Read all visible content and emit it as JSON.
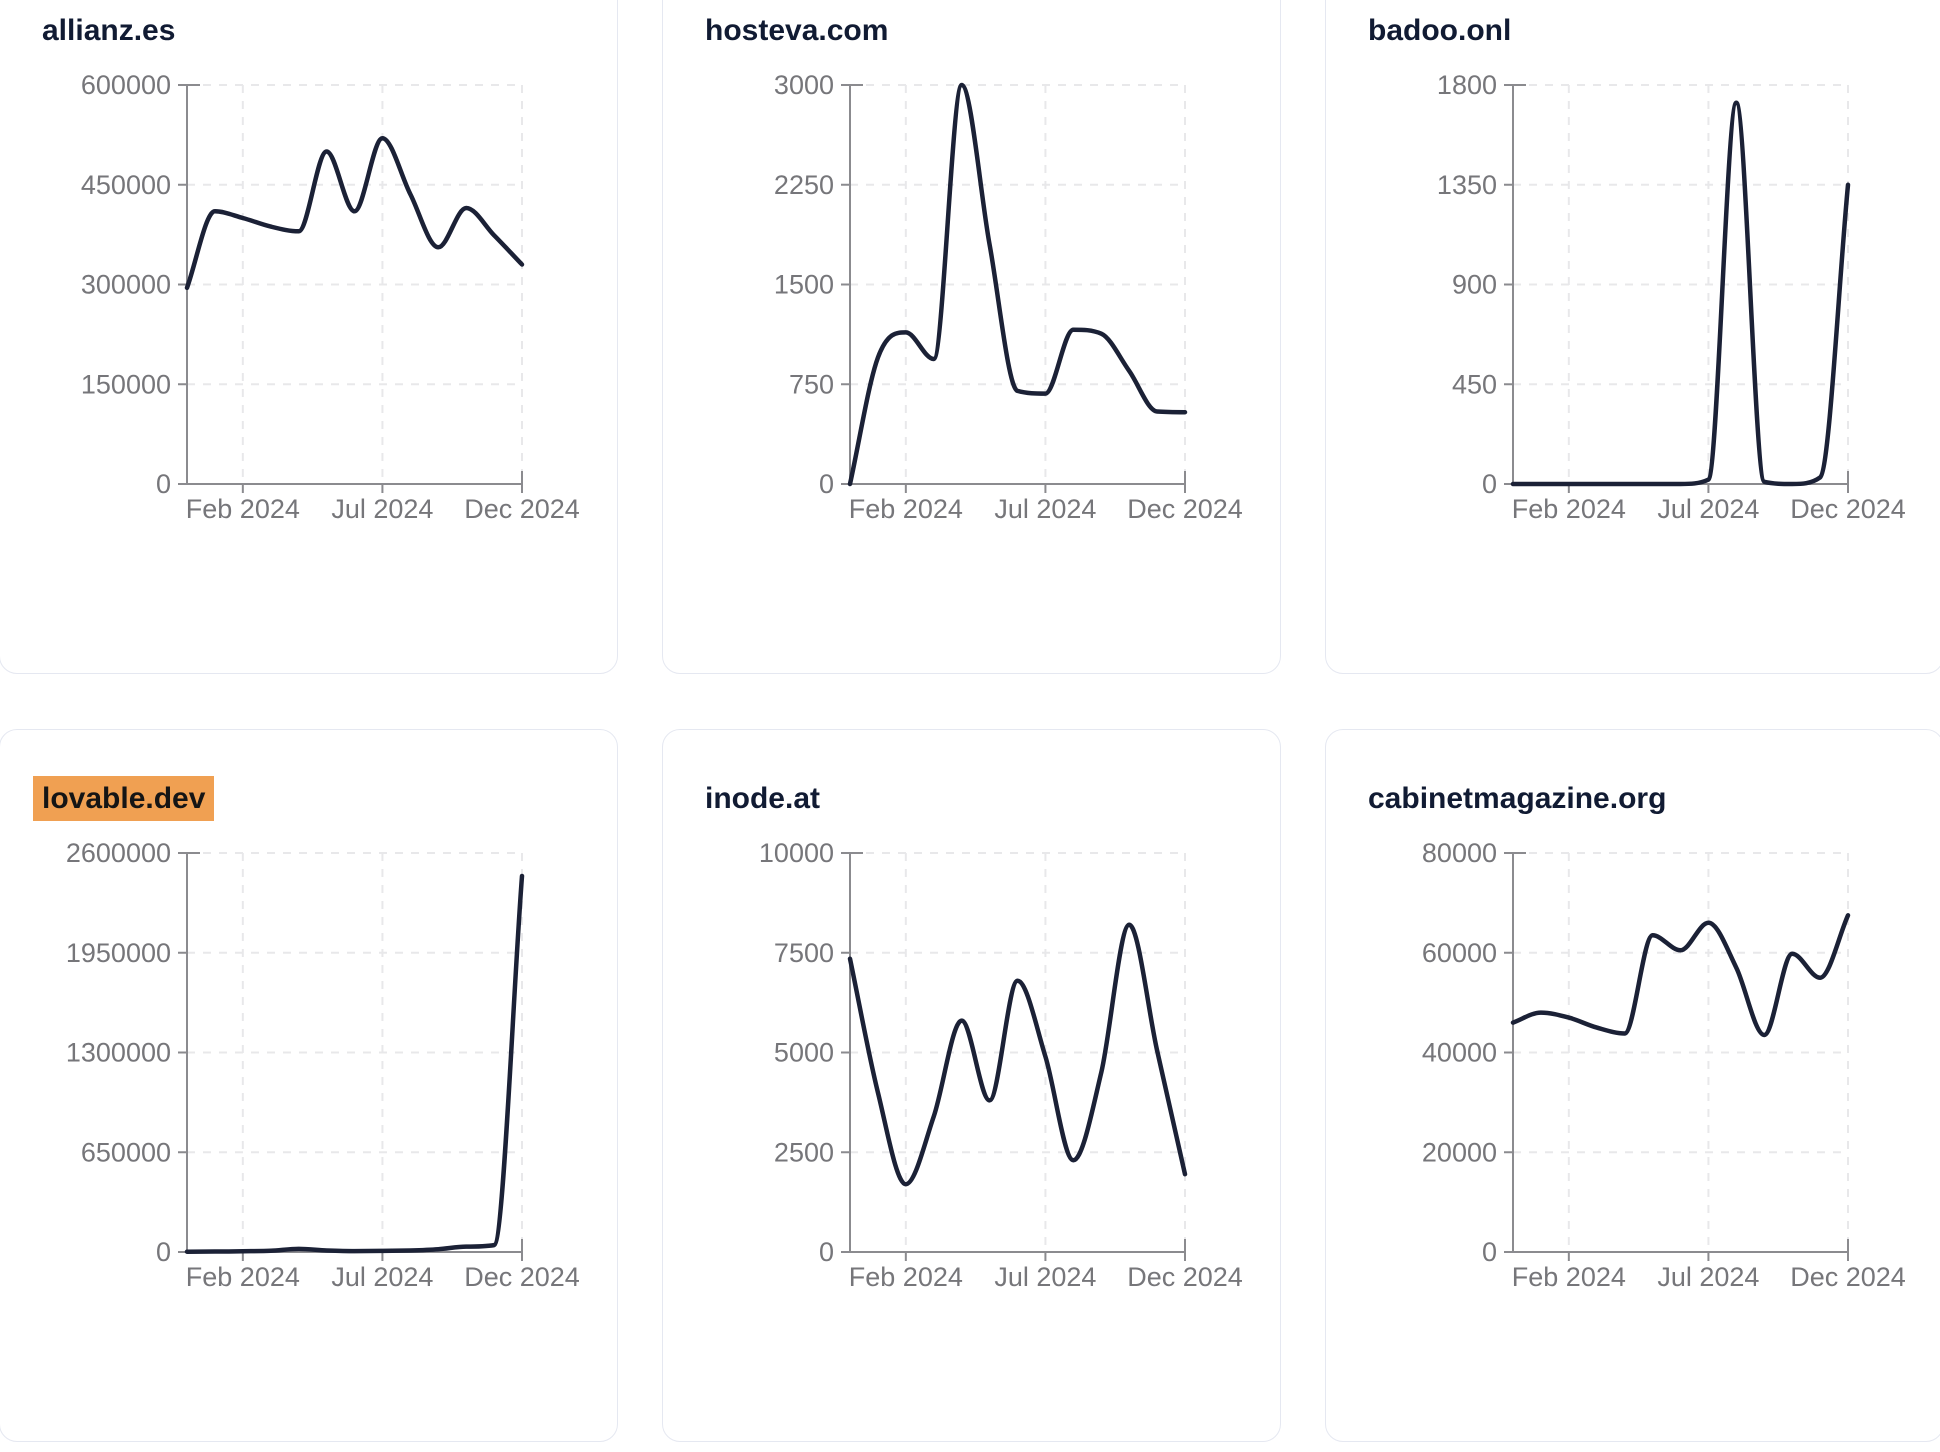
{
  "colors": {
    "line": "#1b2136",
    "title": "#111b33",
    "tick_label": "#76767a",
    "axis": "#8b8b8f",
    "grid": "#e8e8ea",
    "card_border": "#e5e8f1",
    "card_bg": "#ffffff",
    "page_bg": "#ffffff",
    "highlight_bg": "#f0a052",
    "highlight_text": "#151515"
  },
  "chart_data": [
    {
      "type": "line",
      "title": "allianz.es",
      "highlighted": false,
      "x_range": "Dec 2023 to Dec 2024",
      "interval": "monthly",
      "x_tick_labels": [
        "Feb 2024",
        "Jul 2024",
        "Dec 2024"
      ],
      "x_tick_indices": [
        2,
        7,
        12
      ],
      "ylim": [
        0,
        600000
      ],
      "y_ticks": [
        0,
        150000,
        300000,
        450000,
        600000
      ],
      "grid": true,
      "legend": false,
      "values": [
        295000,
        410000,
        400000,
        387000,
        380000,
        500000,
        410000,
        520000,
        436000,
        356000,
        415000,
        374000,
        330000
      ]
    },
    {
      "type": "line",
      "title": "hosteva.com",
      "highlighted": false,
      "x_range": "Dec 2023 to Dec 2024",
      "interval": "monthly",
      "x_tick_labels": [
        "Feb 2024",
        "Jul 2024",
        "Dec 2024"
      ],
      "x_tick_indices": [
        2,
        7,
        12
      ],
      "ylim": [
        0,
        3000
      ],
      "y_ticks": [
        0,
        750,
        1500,
        2250,
        3000
      ],
      "grid": true,
      "legend": false,
      "values": [
        0,
        950,
        1140,
        940,
        3000,
        1800,
        700,
        680,
        1160,
        1130,
        850,
        545,
        540
      ]
    },
    {
      "type": "line",
      "title": "badoo.onl",
      "highlighted": false,
      "x_range": "Dec 2023 to Dec 2024",
      "interval": "monthly",
      "x_tick_labels": [
        "Feb 2024",
        "Jul 2024",
        "Dec 2024"
      ],
      "x_tick_indices": [
        2,
        7,
        12
      ],
      "ylim": [
        0,
        1800
      ],
      "y_ticks": [
        0,
        450,
        900,
        1350,
        1800
      ],
      "grid": true,
      "legend": false,
      "values": [
        0,
        0,
        0,
        0,
        0,
        0,
        0,
        20,
        1720,
        10,
        0,
        30,
        1350
      ]
    },
    {
      "type": "line",
      "title": "lovable.dev",
      "highlighted": true,
      "x_range": "Dec 2023 to Dec 2024",
      "interval": "monthly",
      "x_tick_labels": [
        "Feb 2024",
        "Jul 2024",
        "Dec 2024"
      ],
      "x_tick_indices": [
        2,
        7,
        12
      ],
      "ylim": [
        0,
        2600000
      ],
      "y_ticks": [
        0,
        650000,
        1300000,
        1950000,
        2600000
      ],
      "grid": true,
      "legend": false,
      "values": [
        2000,
        3000,
        5000,
        8000,
        20000,
        10000,
        6000,
        7000,
        10000,
        18000,
        35000,
        45000,
        2450000
      ]
    },
    {
      "type": "line",
      "title": "inode.at",
      "highlighted": false,
      "x_range": "Dec 2023 to Dec 2024",
      "interval": "monthly",
      "x_tick_labels": [
        "Feb 2024",
        "Jul 2024",
        "Dec 2024"
      ],
      "x_tick_indices": [
        2,
        7,
        12
      ],
      "ylim": [
        0,
        10000
      ],
      "y_ticks": [
        0,
        2500,
        5000,
        7500,
        10000
      ],
      "grid": true,
      "legend": false,
      "values": [
        7350,
        4000,
        1700,
        3400,
        5800,
        3800,
        6800,
        4900,
        2300,
        4500,
        8200,
        5050,
        1950
      ]
    },
    {
      "type": "line",
      "title": "cabinetmagazine.org",
      "highlighted": false,
      "x_range": "Dec 2023 to Dec 2024",
      "interval": "monthly",
      "x_tick_labels": [
        "Feb 2024",
        "Jul 2024",
        "Dec 2024"
      ],
      "x_tick_indices": [
        2,
        7,
        12
      ],
      "ylim": [
        0,
        80000
      ],
      "y_ticks": [
        0,
        20000,
        40000,
        60000,
        80000
      ],
      "grid": true,
      "legend": false,
      "values": [
        46000,
        48000,
        47000,
        45000,
        43800,
        63500,
        60500,
        66000,
        57000,
        43500,
        59800,
        55000,
        67500
      ]
    }
  ]
}
